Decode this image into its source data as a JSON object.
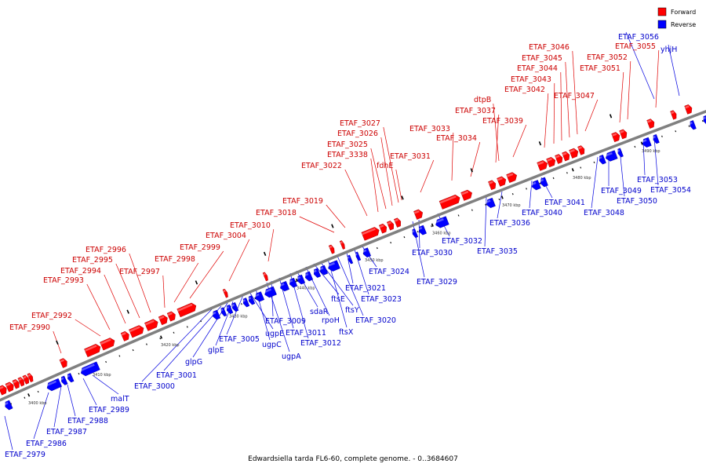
{
  "caption": "Edwardsiella tarda FL6-60, complete genome. - 0..3684607",
  "legend": [
    {
      "label": "Forward",
      "color": "#ff0000"
    },
    {
      "label": "Reverse",
      "color": "#0000ff"
    }
  ],
  "colors": {
    "forward": "#ff0000",
    "reverse": "#0000ff",
    "fwd_label": "#cc0000",
    "rev_label": "#0000cc",
    "backbone": "#808080"
  },
  "ticks": [
    {
      "label": "3400 kbp"
    },
    {
      "label": "3410 kbp"
    },
    {
      "label": "3420 kbp"
    },
    {
      "label": "3430 kbp"
    },
    {
      "label": "3440 kbp"
    },
    {
      "label": "3450 kbp"
    },
    {
      "label": "3460 kbp"
    },
    {
      "label": "3470 kbp"
    },
    {
      "label": "3480 kbp"
    },
    {
      "label": "3490 kbp"
    }
  ],
  "forward_labels": [
    "ETAF_2990",
    "ETAF_2992",
    "ETAF_2993",
    "ETAF_2994",
    "ETAF_2995",
    "ETAF_2996",
    "ETAF_2997",
    "ETAF_2998",
    "ETAF_2999",
    "ETAF_3004",
    "ETAF_3010",
    "ETAF_3018",
    "ETAF_3019",
    "ETAF_3022",
    "ETAF_3338",
    "ETAF_3025",
    "ETAF_3026",
    "ETAF_3027",
    "fdhE",
    "ETAF_3031",
    "ETAF_3034",
    "ETAF_3033",
    "ETAF_3039",
    "ETAF_3037",
    "dtpB",
    "ETAF_3042",
    "ETAF_3043",
    "ETAF_3044",
    "ETAF_3045",
    "ETAF_3046",
    "ETAF_3047",
    "ETAF_3051",
    "ETAF_3052",
    "ETAF_3055"
  ],
  "reverse_labels": [
    "ETAF_2979",
    "ETAF_2986",
    "ETAF_2987",
    "ETAF_2988",
    "ETAF_2989",
    "malT",
    "ETAF_3000",
    "ETAF_3001",
    "glpG",
    "glpE",
    "ETAF_3005",
    "ugpE",
    "ugpC",
    "ugpA",
    "ETAF_3009",
    "ETAF_3011",
    "ETAF_3012",
    "sdaR",
    "rpoH",
    "ftsE",
    "ftsY",
    "ftsX",
    "ETAF_3020",
    "ETAF_3021",
    "ETAF_3023",
    "ETAF_3024",
    "ETAF_3029",
    "ETAF_3030",
    "ETAF_3032",
    "ETAF_3035",
    "ETAF_3036",
    "ETAF_3040",
    "ETAF_3041",
    "ETAF_3048",
    "ETAF_3049",
    "ETAF_3050",
    "ETAF_3053",
    "ETAF_3054",
    "ETAF_3056",
    "yhjH"
  ]
}
